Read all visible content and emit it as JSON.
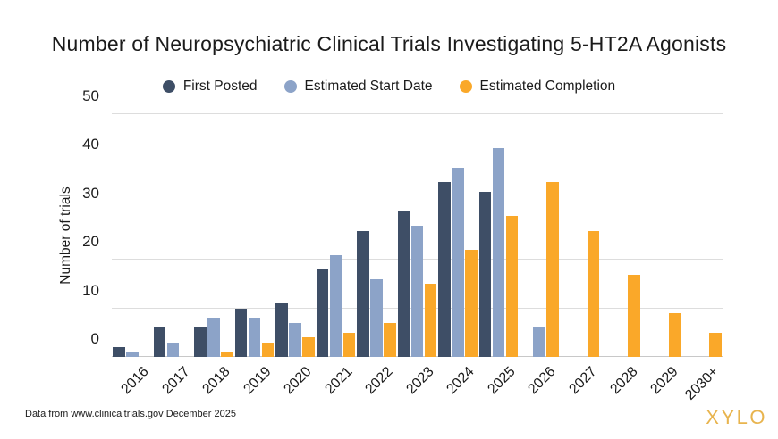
{
  "title": "Number of Neuropsychiatric Clinical Trials Investigating 5-HT2A Agonists",
  "footer": {
    "source": "Data from www.clinicaltrials.gov December 2025",
    "logo": "XYLO",
    "logo_color": "#E8B44E"
  },
  "colors": {
    "text": "#1B1B1B",
    "gridline": "#DDDDDD",
    "baseline": "#C8C8C8"
  },
  "chart_data": {
    "type": "bar",
    "title": "Number of Neuropsychiatric Clinical Trials Investigating 5-HT2A Agonists",
    "xlabel": "",
    "ylabel": "Number of trials",
    "ylim": [
      0,
      50
    ],
    "yticks": [
      0,
      10,
      20,
      30,
      40,
      50
    ],
    "grid": true,
    "legend_position": "top",
    "categories": [
      "2016",
      "2017",
      "2018",
      "2019",
      "2020",
      "2021",
      "2022",
      "2023",
      "2024",
      "2025",
      "2026",
      "2027",
      "2028",
      "2029",
      "2030+"
    ],
    "series": [
      {
        "name": "First Posted",
        "key": "first-posted",
        "color": "#3E4E66",
        "values": [
          2,
          6,
          6,
          10,
          11,
          18,
          26,
          30,
          36,
          34,
          null,
          null,
          null,
          null,
          null
        ]
      },
      {
        "name": "Estimated Start Date",
        "key": "estimated-start-date",
        "color": "#8CA3C8",
        "values": [
          1,
          3,
          8,
          8,
          7,
          21,
          16,
          27,
          39,
          43,
          6,
          null,
          null,
          null,
          null
        ]
      },
      {
        "name": "Estimated Completion",
        "key": "estimated-completion",
        "color": "#FAA829",
        "values": [
          null,
          null,
          1,
          3,
          4,
          5,
          7,
          15,
          22,
          29,
          36,
          26,
          17,
          9,
          5
        ]
      }
    ]
  }
}
